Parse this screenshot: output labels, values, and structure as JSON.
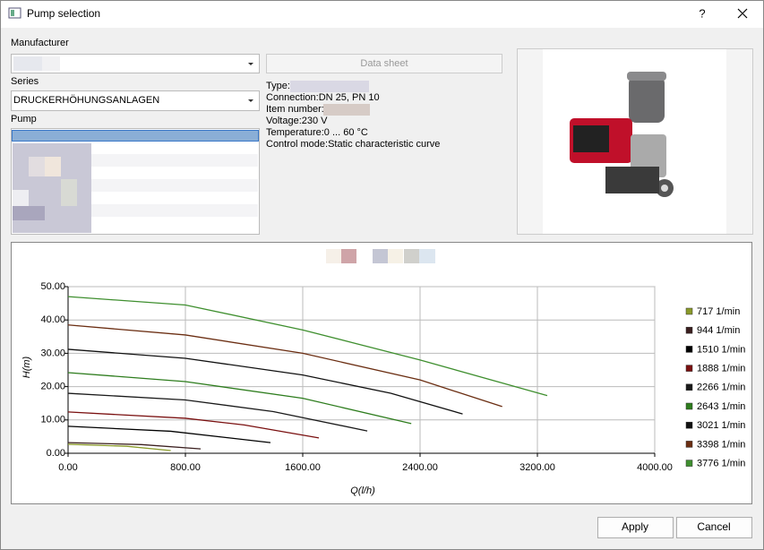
{
  "window": {
    "title": "Pump selection",
    "help": "?"
  },
  "form": {
    "manufacturer_label": "Manufacturer",
    "series_label": "Series",
    "series_value": "DRUCKERHÖHUNGSANLAGEN",
    "pump_label": "Pump",
    "data_sheet_button": "Data sheet"
  },
  "info": [
    "Type:",
    "Connection:DN 25, PN 10",
    "Item number:",
    "Voltage:230 V",
    "Temperature:0 ... 60 °C",
    "Control mode:Static characteristic curve"
  ],
  "chart_data": {
    "type": "line",
    "x_label": "Q(l/h)",
    "y_label": "H(m)",
    "xlim": [
      0,
      4000
    ],
    "ylim": [
      0,
      50
    ],
    "xticks": [
      {
        "value": 0,
        "label": "0.00"
      },
      {
        "value": 800,
        "label": "800.00"
      },
      {
        "value": 1600,
        "label": "1600.00"
      },
      {
        "value": 2400,
        "label": "2400.00"
      },
      {
        "value": 3200,
        "label": "3200.00"
      },
      {
        "value": 4000,
        "label": "4000.00"
      }
    ],
    "yticks": [
      {
        "value": 0,
        "label": "0.00"
      },
      {
        "value": 10,
        "label": "10.00"
      },
      {
        "value": 20,
        "label": "20.00"
      },
      {
        "value": 30,
        "label": "30.00"
      },
      {
        "value": 40,
        "label": "40.00"
      },
      {
        "value": 50,
        "label": "50.00"
      }
    ],
    "grid": true,
    "legend": "right",
    "series": [
      {
        "name": "717 1/min",
        "color": "#8a9a2a",
        "x": [
          0,
          400,
          700
        ],
        "values": [
          2.7,
          2.1,
          0.8
        ]
      },
      {
        "name": "944 1/min",
        "color": "#3b1f1f",
        "x": [
          0,
          500,
          904
        ],
        "values": [
          3.2,
          2.6,
          1.3
        ]
      },
      {
        "name": "1510 1/min",
        "color": "#000000",
        "x": [
          0,
          700,
          1380
        ],
        "values": [
          8.1,
          6.6,
          3.2
        ]
      },
      {
        "name": "1888 1/min",
        "color": "#7a1010",
        "x": [
          0,
          800,
          1200,
          1710
        ],
        "values": [
          12.4,
          10.5,
          8.5,
          4.6
        ]
      },
      {
        "name": "2266 1/min",
        "color": "#1a1a1a",
        "x": [
          0,
          800,
          1400,
          2040
        ],
        "values": [
          18,
          16,
          12.5,
          6.7
        ]
      },
      {
        "name": "2643 1/min",
        "color": "#2e7d1e",
        "x": [
          0,
          800,
          1600,
          2340
        ],
        "values": [
          24.2,
          21.5,
          16.5,
          8.9
        ]
      },
      {
        "name": "3021 1/min",
        "color": "#111111",
        "x": [
          0,
          800,
          1600,
          2200,
          2690
        ],
        "values": [
          31.2,
          28.5,
          23.5,
          18,
          11.8
        ]
      },
      {
        "name": "3398 1/min",
        "color": "#6b2e12",
        "x": [
          0,
          800,
          1600,
          2400,
          2960
        ],
        "values": [
          38.5,
          35.5,
          30,
          22,
          14
        ]
      },
      {
        "name": "3776 1/min",
        "color": "#3f8f2f",
        "x": [
          0,
          800,
          1600,
          2400,
          3267
        ],
        "values": [
          47,
          44.5,
          37,
          28,
          17.3
        ]
      }
    ]
  },
  "buttons": {
    "apply": "Apply",
    "cancel": "Cancel"
  }
}
